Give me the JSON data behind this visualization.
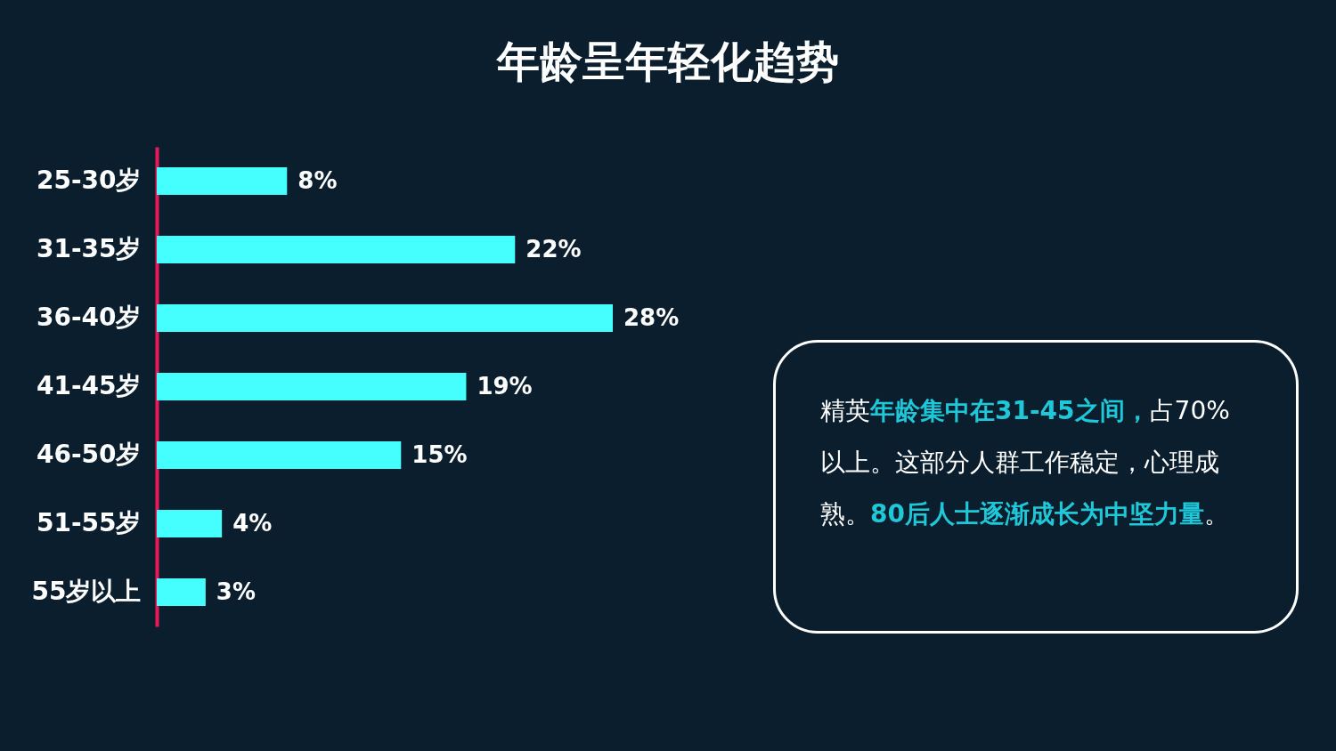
{
  "chart_data": {
    "type": "bar",
    "orientation": "horizontal",
    "title": "年龄呈年轻化趋势",
    "categories": [
      "25-30岁",
      "31-35岁",
      "36-40岁",
      "41-45岁",
      "46-50岁",
      "51-55岁",
      "55岁以上"
    ],
    "values": [
      8,
      22,
      28,
      19,
      15,
      4,
      3
    ],
    "value_labels": [
      "8%",
      "22%",
      "28%",
      "19%",
      "15%",
      "4%",
      "3%"
    ],
    "color": "#45ffff",
    "annotations": [
      "精英",
      "年龄集中在31-45之间，",
      "占70%以上。这部分人群工作稳定，心理成熟。",
      "80后人士逐渐成长为中坚力量",
      "。"
    ]
  }
}
